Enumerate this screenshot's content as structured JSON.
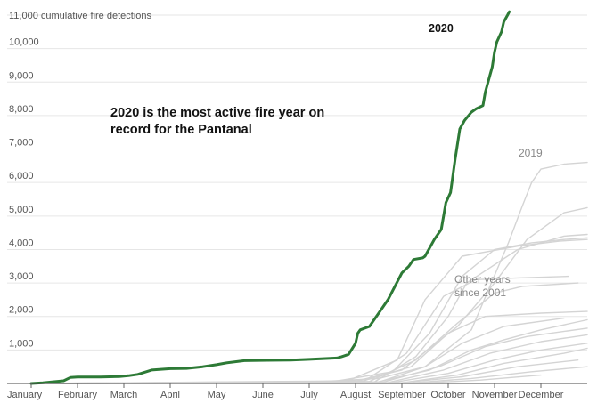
{
  "chart_data": {
    "type": "line",
    "ylabel": "11,000 cumulative fire detections",
    "ylim": [
      0,
      11000
    ],
    "y_ticks": [
      {
        "value": 1000,
        "label": "1,000"
      },
      {
        "value": 2000,
        "label": "2,000"
      },
      {
        "value": 3000,
        "label": "3,000"
      },
      {
        "value": 4000,
        "label": "4,000"
      },
      {
        "value": 5000,
        "label": "5,000"
      },
      {
        "value": 6000,
        "label": "6,000"
      },
      {
        "value": 7000,
        "label": "7,000"
      },
      {
        "value": 8000,
        "label": "8,000"
      },
      {
        "value": 9000,
        "label": "9,000"
      },
      {
        "value": 10000,
        "label": "10,000"
      }
    ],
    "xlim": [
      0,
      12
    ],
    "x_unit": "month of year (0 = Jan 1)",
    "months": [
      "January",
      "February",
      "March",
      "April",
      "May",
      "June",
      "July",
      "August",
      "September",
      "October",
      "November",
      "December"
    ],
    "grid": "horizontal",
    "colors": {
      "highlight": "#2d7a36",
      "other": "#d4d4d4",
      "grid": "#e6e6e6",
      "axis": "#444444"
    },
    "series": [
      {
        "name": "2020",
        "highlight": true,
        "x": [
          0,
          0.25,
          0.7,
          0.85,
          1.0,
          1.5,
          1.9,
          2.1,
          2.3,
          2.6,
          3.0,
          3.35,
          3.7,
          4.0,
          4.2,
          4.6,
          5.1,
          5.6,
          6.0,
          6.3,
          6.6,
          6.7,
          6.85,
          7.0,
          7.05,
          7.1,
          7.3,
          7.5,
          7.7,
          8.0,
          8.15,
          8.25,
          8.45,
          8.5,
          8.7,
          8.85,
          8.95,
          9.05,
          9.15,
          9.25,
          9.35,
          9.5,
          9.6,
          9.75,
          9.8,
          9.9,
          9.95,
          10.0,
          10.05,
          10.15,
          10.2,
          10.28,
          10.32
        ],
        "values": [
          0,
          20,
          80,
          180,
          190,
          195,
          205,
          230,
          270,
          400,
          440,
          450,
          500,
          560,
          610,
          680,
          690,
          700,
          720,
          740,
          760,
          800,
          870,
          1200,
          1500,
          1600,
          1700,
          2100,
          2500,
          3300,
          3500,
          3700,
          3750,
          3800,
          4300,
          4600,
          5400,
          5700,
          6700,
          7600,
          7850,
          8100,
          8200,
          8300,
          8700,
          9200,
          9450,
          9900,
          10200,
          10500,
          10800,
          11000,
          11100
        ]
      },
      {
        "name": "2019",
        "x": [
          0,
          6.0,
          7.5,
          8.5,
          9.5,
          10.3,
          10.6,
          10.8,
          11.0,
          11.5,
          12.0
        ],
        "values": [
          0,
          40,
          150,
          500,
          1600,
          4200,
          5300,
          6000,
          6400,
          6550,
          6600
        ]
      },
      {
        "x": [
          0,
          6.5,
          7.8,
          8.6,
          9.3,
          10.0,
          10.8,
          11.5,
          12.0
        ],
        "values": [
          0,
          50,
          350,
          1500,
          3200,
          4000,
          4200,
          4300,
          4350
        ]
      },
      {
        "x": [
          0,
          6.8,
          7.9,
          8.5,
          9.3,
          10.5,
          11.4,
          12.0
        ],
        "values": [
          0,
          60,
          700,
          2500,
          3800,
          4100,
          4250,
          4300
        ]
      },
      {
        "x": [
          0,
          7.0,
          8.0,
          9.2,
          10.0,
          10.7,
          11.5,
          12.0
        ],
        "values": [
          0,
          70,
          400,
          1700,
          3000,
          4300,
          5100,
          5250
        ]
      },
      {
        "x": [
          0,
          7.2,
          8.1,
          8.9,
          9.6,
          10.5,
          11.6
        ],
        "values": [
          0,
          80,
          900,
          2600,
          3100,
          3150,
          3200
        ]
      },
      {
        "x": [
          0,
          7.3,
          8.3,
          9.2,
          10.0,
          10.6,
          11.8
        ],
        "values": [
          0,
          60,
          700,
          1800,
          2700,
          2900,
          3000
        ]
      },
      {
        "x": [
          0,
          7.1,
          8.2,
          9.0,
          9.8,
          11.0,
          12.0
        ],
        "values": [
          0,
          50,
          500,
          1500,
          2000,
          2100,
          2150
        ]
      },
      {
        "x": [
          0,
          7.5,
          8.5,
          9.3,
          10.2,
          11.5
        ],
        "values": [
          0,
          40,
          500,
          1200,
          1700,
          1950
        ]
      },
      {
        "x": [
          0,
          7.5,
          8.6,
          9.5,
          10.2,
          11.0,
          12.0
        ],
        "values": [
          0,
          50,
          400,
          1000,
          1300,
          1600,
          1900
        ]
      },
      {
        "x": [
          0,
          7.6,
          8.8,
          9.8,
          10.7,
          12.0
        ],
        "values": [
          0,
          40,
          500,
          1100,
          1400,
          1650
        ]
      },
      {
        "x": [
          0,
          7.7,
          8.9,
          9.9,
          11.0,
          12.0
        ],
        "values": [
          0,
          30,
          400,
          900,
          1250,
          1450
        ]
      },
      {
        "x": [
          0,
          7.8,
          9.0,
          10.0,
          11.0,
          12.0
        ],
        "values": [
          0,
          30,
          300,
          700,
          1000,
          1200
        ]
      },
      {
        "x": [
          0,
          8.0,
          9.2,
          10.2,
          11.5,
          12.0
        ],
        "values": [
          0,
          20,
          250,
          600,
          900,
          1050
        ]
      },
      {
        "x": [
          0,
          8.0,
          9.3,
          10.5,
          11.8
        ],
        "values": [
          0,
          20,
          200,
          500,
          700
        ]
      },
      {
        "x": [
          0,
          8.2,
          9.5,
          10.8,
          12.0
        ],
        "values": [
          0,
          15,
          150,
          350,
          500
        ]
      },
      {
        "x": [
          0,
          8.4,
          9.7,
          11.0
        ],
        "values": [
          0,
          10,
          100,
          250
        ]
      },
      {
        "x": [
          0,
          7.4,
          8.3,
          9.0,
          9.4,
          10.5,
          11.5,
          12.0
        ],
        "values": [
          0,
          40,
          800,
          2000,
          3000,
          4000,
          4400,
          4450
        ]
      }
    ],
    "annotations": {
      "headline_line1": "2020 is the most active fire year on",
      "headline_line2": "record for the Pantanal",
      "label_2020": "2020",
      "label_2019": "2019",
      "other_line1": "Other years",
      "other_line2": "since 2001"
    }
  }
}
